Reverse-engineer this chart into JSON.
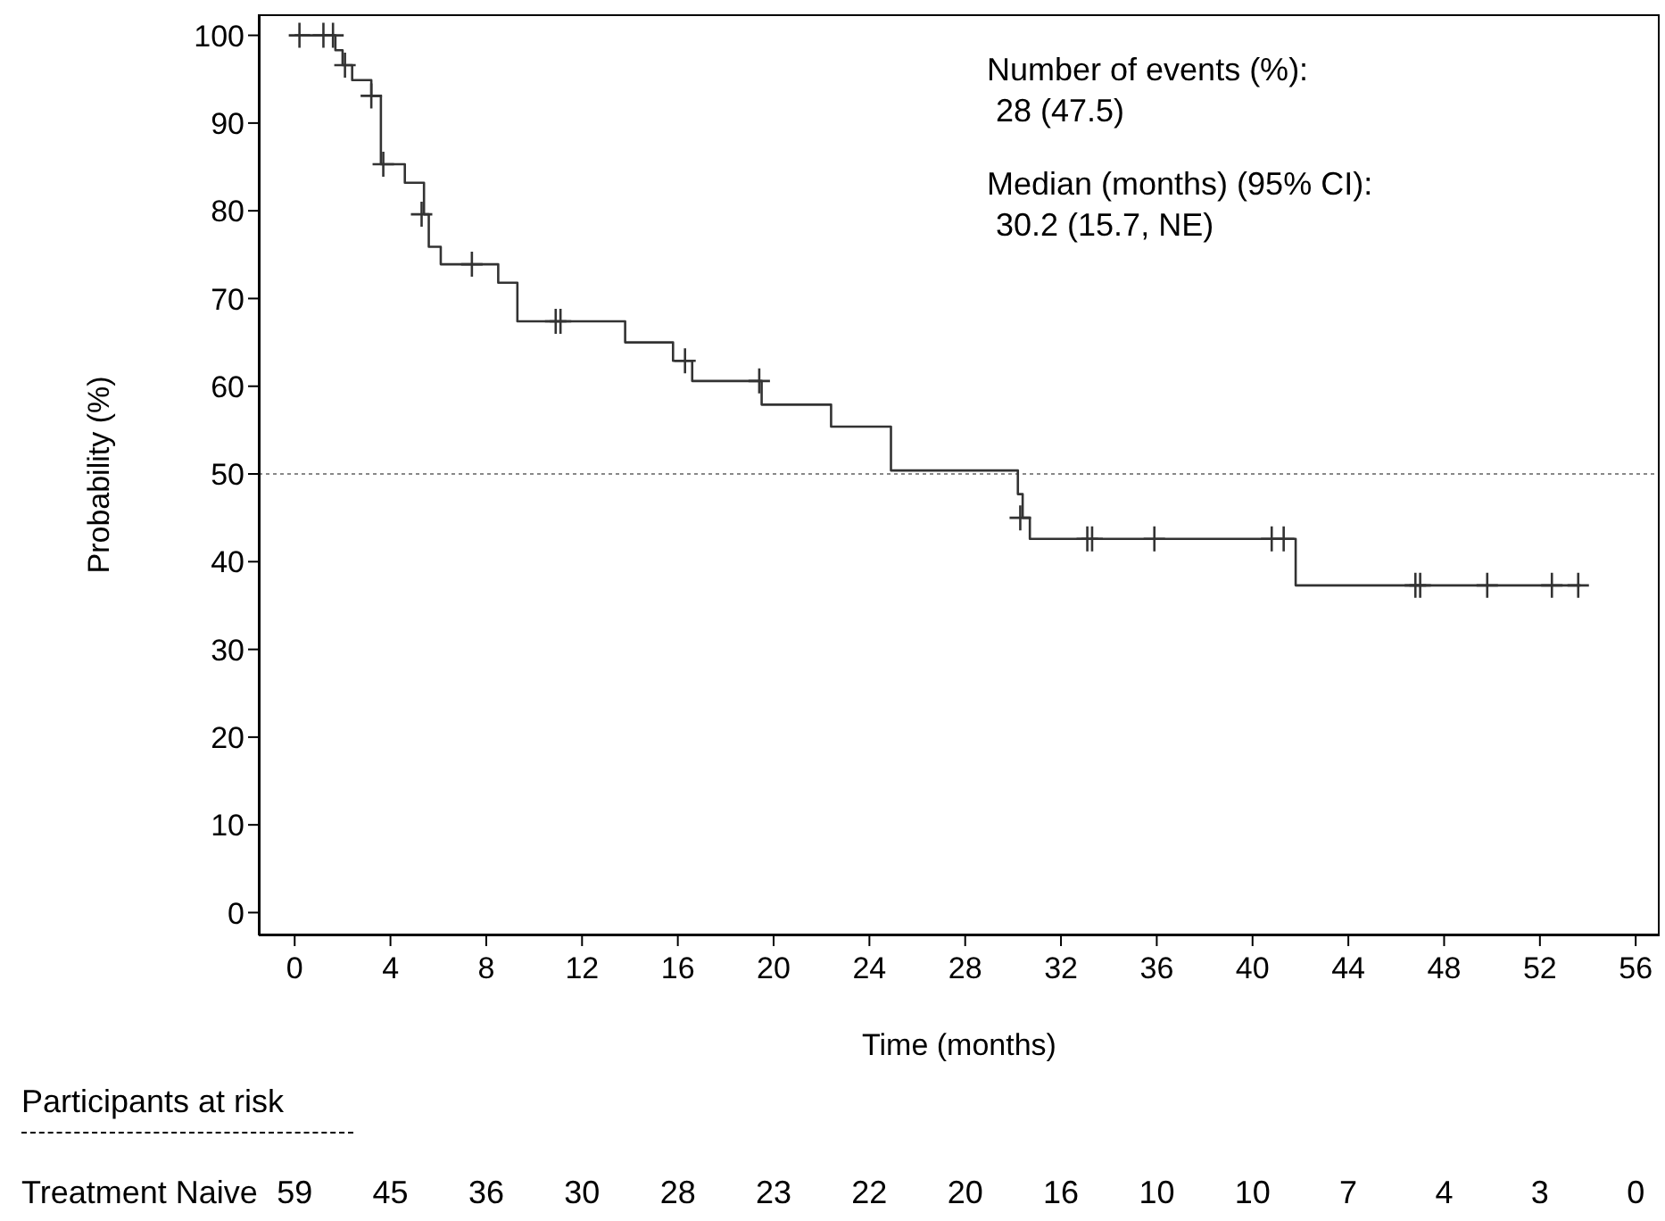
{
  "chart_data": {
    "type": "step",
    "xlabel": "Time (months)",
    "ylabel": "Probability (%)",
    "xlim": [
      -1.5,
      57
    ],
    "xticks": [
      0,
      4,
      8,
      12,
      16,
      20,
      24,
      28,
      32,
      36,
      40,
      44,
      48,
      52,
      56
    ],
    "ylim": [
      -2.6,
      102.4
    ],
    "yticks": [
      0,
      10,
      20,
      30,
      40,
      50,
      60,
      70,
      80,
      90,
      100
    ],
    "line_style": "solid",
    "marker": "none",
    "ref_lines": [
      {
        "axis": "y",
        "value": 50,
        "line_style": "dotted",
        "color": "#888888"
      }
    ],
    "series": [
      {
        "color": "#333333",
        "x": [
          0,
          1.7,
          2.0,
          2.4,
          3.2,
          3.6,
          4.6,
          5.4,
          5.6,
          6.1,
          8.5,
          9.3,
          13.8,
          15.8,
          16.6,
          19.5,
          22.4,
          24.9,
          30.2,
          30.4,
          30.7,
          41.8,
          53.7
        ],
        "values": [
          100,
          98.3,
          96.6,
          94.9,
          93.1,
          85.3,
          83.2,
          79.6,
          75.9,
          73.9,
          71.8,
          67.4,
          65.0,
          62.9,
          60.6,
          57.9,
          55.4,
          50.4,
          47.7,
          45.0,
          42.6,
          37.3,
          37.3
        ]
      },
      {
        "type": "scatter",
        "marker": "cross",
        "color": "#333333",
        "x": [
          0.2,
          1.2,
          1.6,
          2.1,
          3.2,
          3.7,
          5.3,
          7.4,
          10.9,
          11.1,
          16.3,
          19.4,
          30.3,
          33.1,
          33.3,
          35.9,
          40.8,
          41.3,
          46.8,
          47.0,
          49.8,
          52.5,
          53.6
        ],
        "values": [
          100,
          100,
          100,
          96.6,
          93.1,
          85.3,
          79.6,
          73.9,
          67.4,
          67.4,
          62.9,
          60.6,
          45.0,
          42.6,
          42.6,
          42.6,
          42.6,
          42.6,
          37.3,
          37.3,
          37.3,
          37.3,
          37.3
        ]
      }
    ],
    "annotations": [
      "Number of events (%):",
      " 28 (47.5)",
      "Median (months) (95% CI):",
      " 30.2 (15.7, NE)",
      "Participants at risk",
      "Treatment Naive",
      "59",
      "45",
      "36",
      "30",
      "28",
      "23",
      "22",
      "20",
      "16",
      "10",
      "10",
      "7",
      "4",
      "3",
      "0"
    ]
  }
}
